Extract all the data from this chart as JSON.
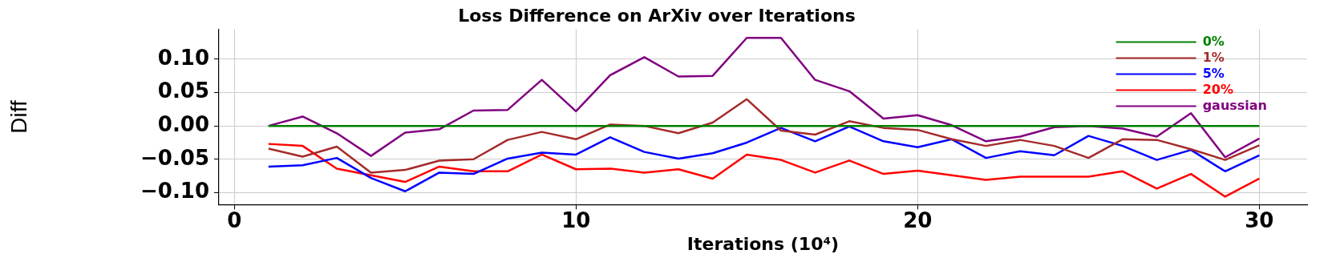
{
  "chart_data": {
    "type": "line",
    "title": "Loss Difference on ArXiv over Iterations",
    "xlabel": "Iterations (10⁴)",
    "ylabel": "Diff",
    "x": [
      1,
      2,
      3,
      4,
      5,
      6,
      7,
      8,
      9,
      10,
      11,
      12,
      13,
      14,
      15,
      16,
      17,
      18,
      19,
      20,
      21,
      22,
      23,
      24,
      25,
      26,
      27,
      28,
      29,
      30
    ],
    "series": [
      {
        "name": "0%",
        "color": "#008000",
        "values": [
          0,
          0,
          0,
          0,
          0,
          0,
          0,
          0,
          0,
          0,
          0,
          0,
          0,
          0,
          0,
          0,
          0,
          0,
          0,
          0,
          0,
          0,
          0,
          0,
          0,
          0,
          0,
          0,
          0,
          0
        ]
      },
      {
        "name": "1%",
        "color": "#a52a2a",
        "values": [
          -0.034,
          -0.046,
          -0.031,
          -0.07,
          -0.066,
          -0.052,
          -0.05,
          -0.021,
          -0.009,
          -0.02,
          0.002,
          0,
          -0.011,
          0.005,
          0.04,
          -0.007,
          -0.013,
          0.007,
          -0.003,
          -0.006,
          -0.02,
          -0.03,
          -0.021,
          -0.03,
          -0.048,
          -0.02,
          -0.021,
          -0.035,
          -0.051,
          -0.029
        ]
      },
      {
        "name": "5%",
        "color": "#0000ff",
        "values": [
          -0.061,
          -0.059,
          -0.048,
          -0.078,
          -0.098,
          -0.07,
          -0.072,
          -0.049,
          -0.04,
          -0.043,
          -0.017,
          -0.039,
          -0.049,
          -0.041,
          -0.025,
          -0.003,
          -0.023,
          -0.001,
          -0.023,
          -0.032,
          -0.02,
          -0.048,
          -0.038,
          -0.044,
          -0.015,
          -0.03,
          -0.051,
          -0.036,
          -0.068,
          -0.044
        ]
      },
      {
        "name": "20%",
        "color": "#ff0000",
        "values": [
          -0.027,
          -0.03,
          -0.064,
          -0.074,
          -0.084,
          -0.061,
          -0.068,
          -0.068,
          -0.043,
          -0.065,
          -0.064,
          -0.07,
          -0.065,
          -0.079,
          -0.043,
          -0.051,
          -0.07,
          -0.052,
          -0.072,
          -0.067,
          -0.074,
          -0.081,
          -0.076,
          -0.076,
          -0.076,
          -0.068,
          -0.094,
          -0.072,
          -0.106,
          -0.079
        ]
      },
      {
        "name": "gaussian",
        "color": "#800080",
        "values": [
          0,
          0.014,
          -0.011,
          -0.045,
          -0.01,
          -0.005,
          0.023,
          0.024,
          0.069,
          0.022,
          0.076,
          0.103,
          0.074,
          0.075,
          0.132,
          0.132,
          0.069,
          0.052,
          0.011,
          0.016,
          0.001,
          -0.023,
          -0.016,
          -0.002,
          0,
          -0.004,
          -0.016,
          0.019,
          -0.047,
          -0.019
        ]
      }
    ],
    "xlim": [
      -0.45,
      31.4
    ],
    "ylim": [
      -0.118,
      0.145
    ],
    "xticks": [
      0,
      10,
      20,
      30
    ],
    "yticks": [
      {
        "value": -0.1,
        "label": "−0.10"
      },
      {
        "value": -0.05,
        "label": "−0.05"
      },
      {
        "value": 0,
        "label": "0.00"
      },
      {
        "value": 0.05,
        "label": "0.05"
      },
      {
        "value": 0.1,
        "label": "0.10"
      }
    ],
    "grid": true,
    "legend": "top right",
    "marker": "none",
    "line_style": "solid"
  }
}
